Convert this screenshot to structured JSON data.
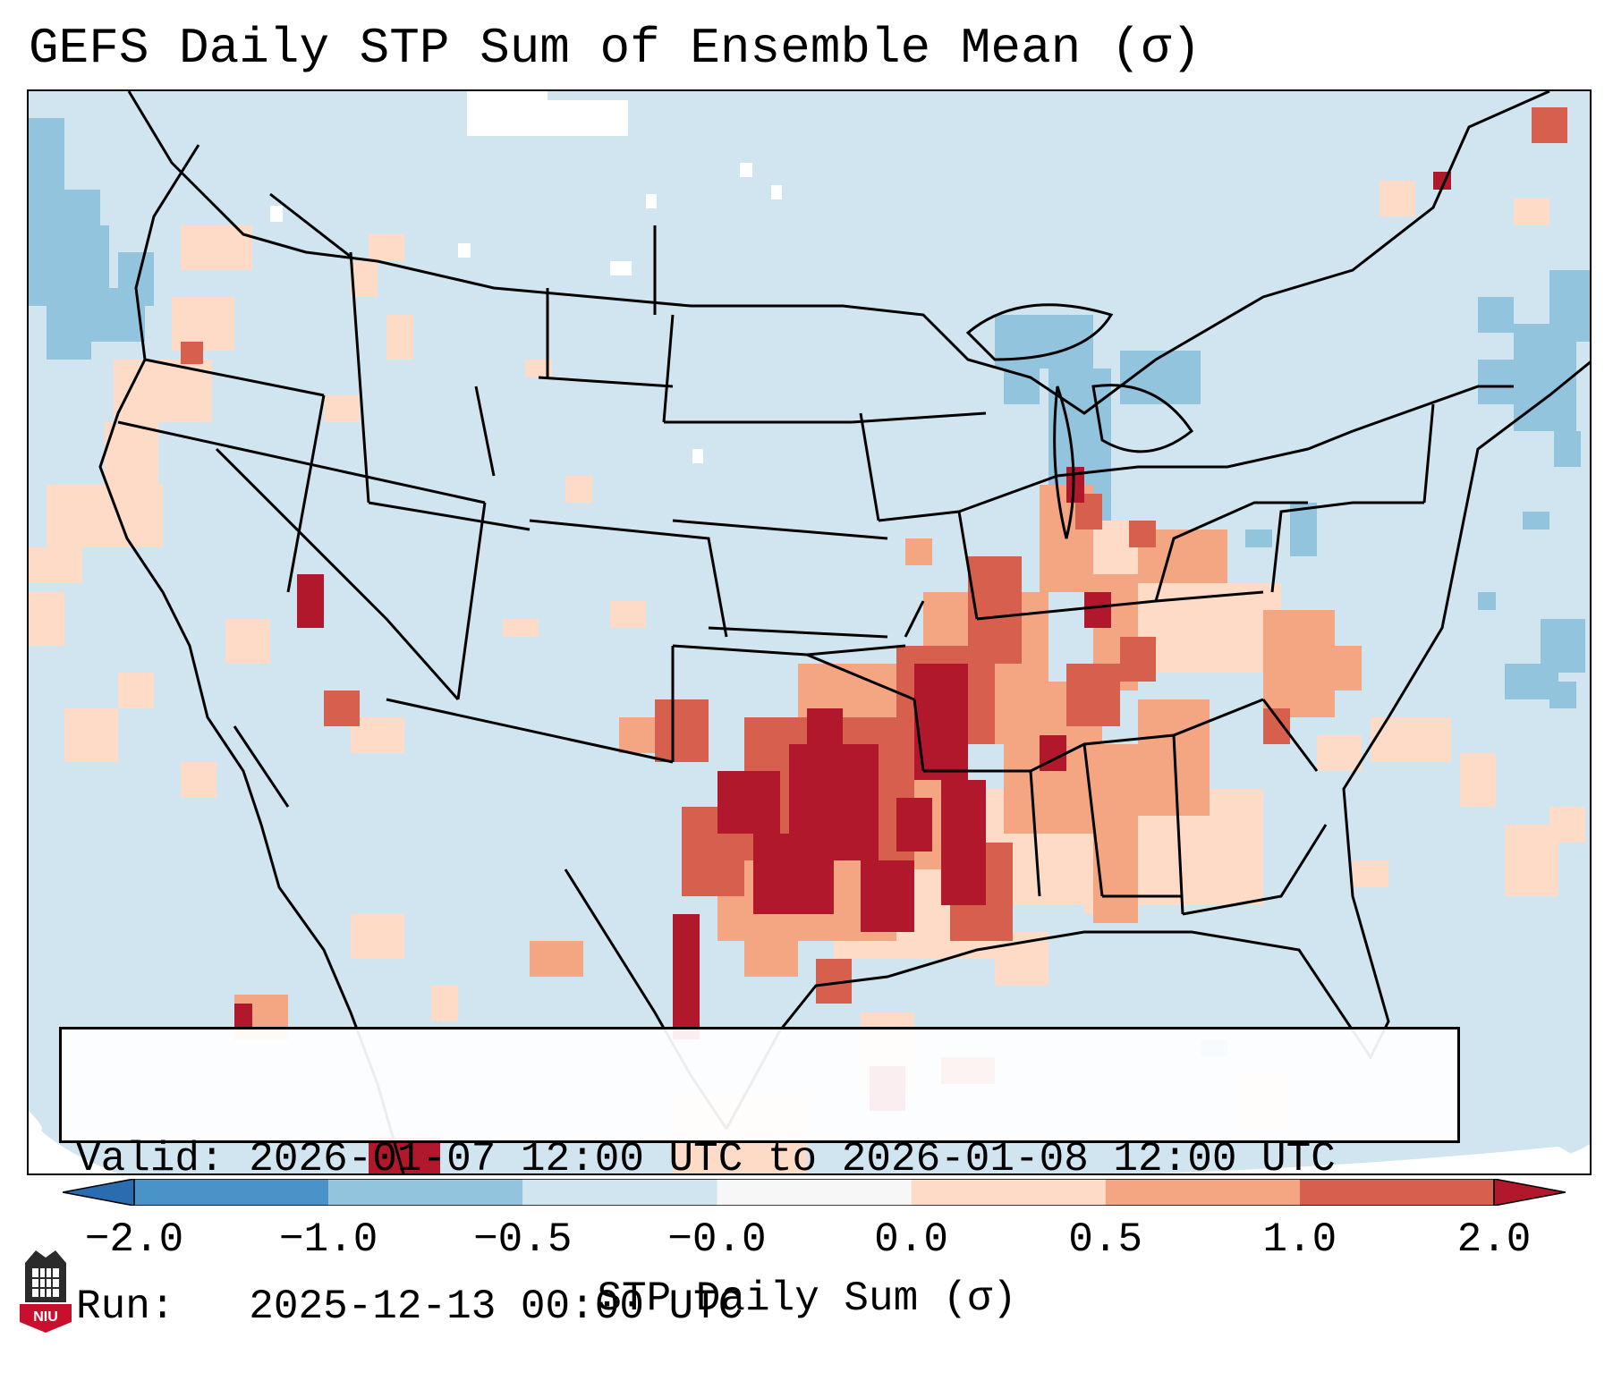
{
  "title": "GEFS Daily STP Sum of Ensemble Mean (σ)",
  "info": {
    "valid_label": "Valid:",
    "valid_value": "2026-01-07 12:00 UTC to 2026-01-08 12:00 UTC",
    "run_label": "Run:",
    "run_value": "2025-12-13 00:00 UTC"
  },
  "colorbar": {
    "label": "STP Daily Sum (σ)",
    "ticks": [
      "−2.0",
      "−1.0",
      "−0.5",
      "−0.0",
      "0.0",
      "0.5",
      "1.0",
      "2.0"
    ],
    "bins": [
      {
        "range": "below -2.0",
        "color": "#2b6cb0"
      },
      {
        "range": "-2.0 to -1.0",
        "color": "#4a93c8"
      },
      {
        "range": "-1.0 to -0.5",
        "color": "#92c4de"
      },
      {
        "range": "-0.5 to -0.0",
        "color": "#d1e5f0"
      },
      {
        "range": "-0.0 to 0.0",
        "color": "#f7f7f7"
      },
      {
        "range": "0.0 to 0.5",
        "color": "#fddbc7"
      },
      {
        "range": "0.5 to 1.0",
        "color": "#f4a582"
      },
      {
        "range": "1.0 to 2.0",
        "color": "#d6604d"
      },
      {
        "range": "above 2.0",
        "color": "#b2182b"
      }
    ]
  },
  "colors": {
    "background_field": "#d1e5f0",
    "border_lines": "#000000"
  },
  "logo": {
    "text": "NIU",
    "color": "#c8102e"
  }
}
